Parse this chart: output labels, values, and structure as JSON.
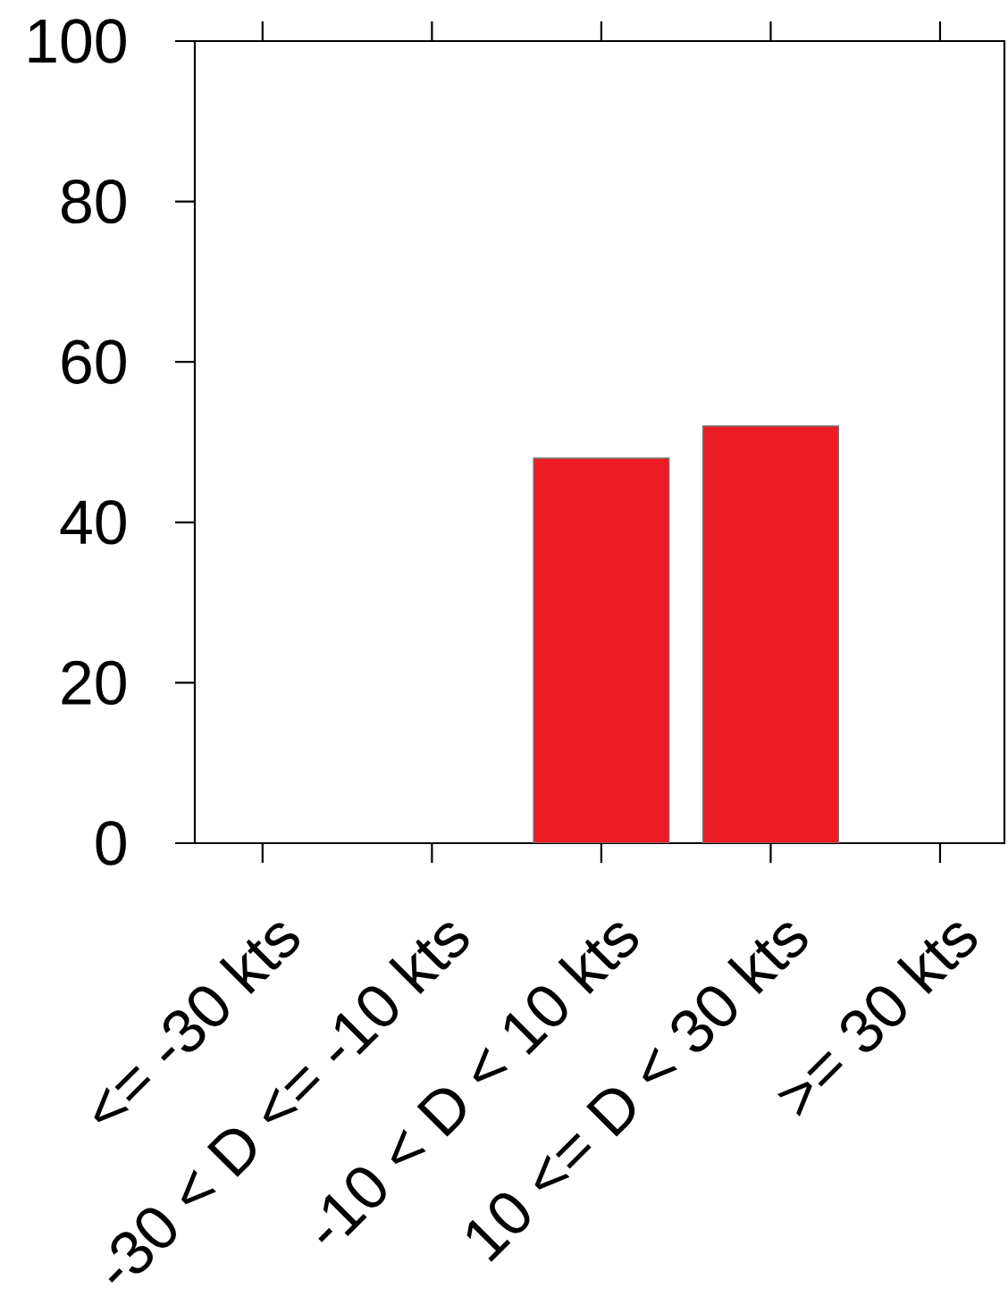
{
  "chart_data": {
    "type": "bar",
    "categories": [
      "<= -30 kts",
      "-30 < D <= -10 kts",
      "-10 < D < 10 kts",
      "10 <= D < 30 kts",
      ">= 30 kts"
    ],
    "values": [
      0,
      0,
      48,
      52,
      0
    ],
    "color": "#ed1c24",
    "ylim": [
      0,
      100
    ],
    "yticks": [
      0,
      20,
      40,
      60,
      80,
      100
    ]
  }
}
